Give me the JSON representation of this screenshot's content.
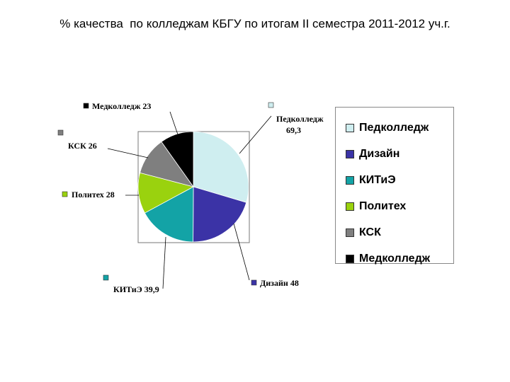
{
  "title": "% качества  по колледжам КБГУ по итогам II семестра 2011-2012 уч.г.",
  "chart_data": {
    "type": "pie",
    "title": "% качества  по колледжам КБГУ по итогам II семестра 2011-2012 уч.г.",
    "slices": [
      {
        "name": "Педколледж",
        "label": "Педколледж",
        "value_text": "69,3",
        "value": 69.3,
        "color": "#cfeef0"
      },
      {
        "name": "Дизайн",
        "label": "Дизайн",
        "value_text": "48",
        "value": 48,
        "color": "#3b33a6"
      },
      {
        "name": "КИТиЭ",
        "label": "КИТиЭ",
        "value_text": "39,9",
        "value": 39.9,
        "color": "#13a3a6"
      },
      {
        "name": "Политех",
        "label": "Политех",
        "value_text": "28",
        "value": 28,
        "color": "#9ad20e"
      },
      {
        "name": "КСК",
        "label": "КСК",
        "value_text": "26",
        "value": 26,
        "color": "#7f7f7f"
      },
      {
        "name": "Медколледж",
        "label": "Медколледж",
        "value_text": "23",
        "value": 23,
        "color": "#000000"
      }
    ],
    "legend_placement": "right"
  }
}
